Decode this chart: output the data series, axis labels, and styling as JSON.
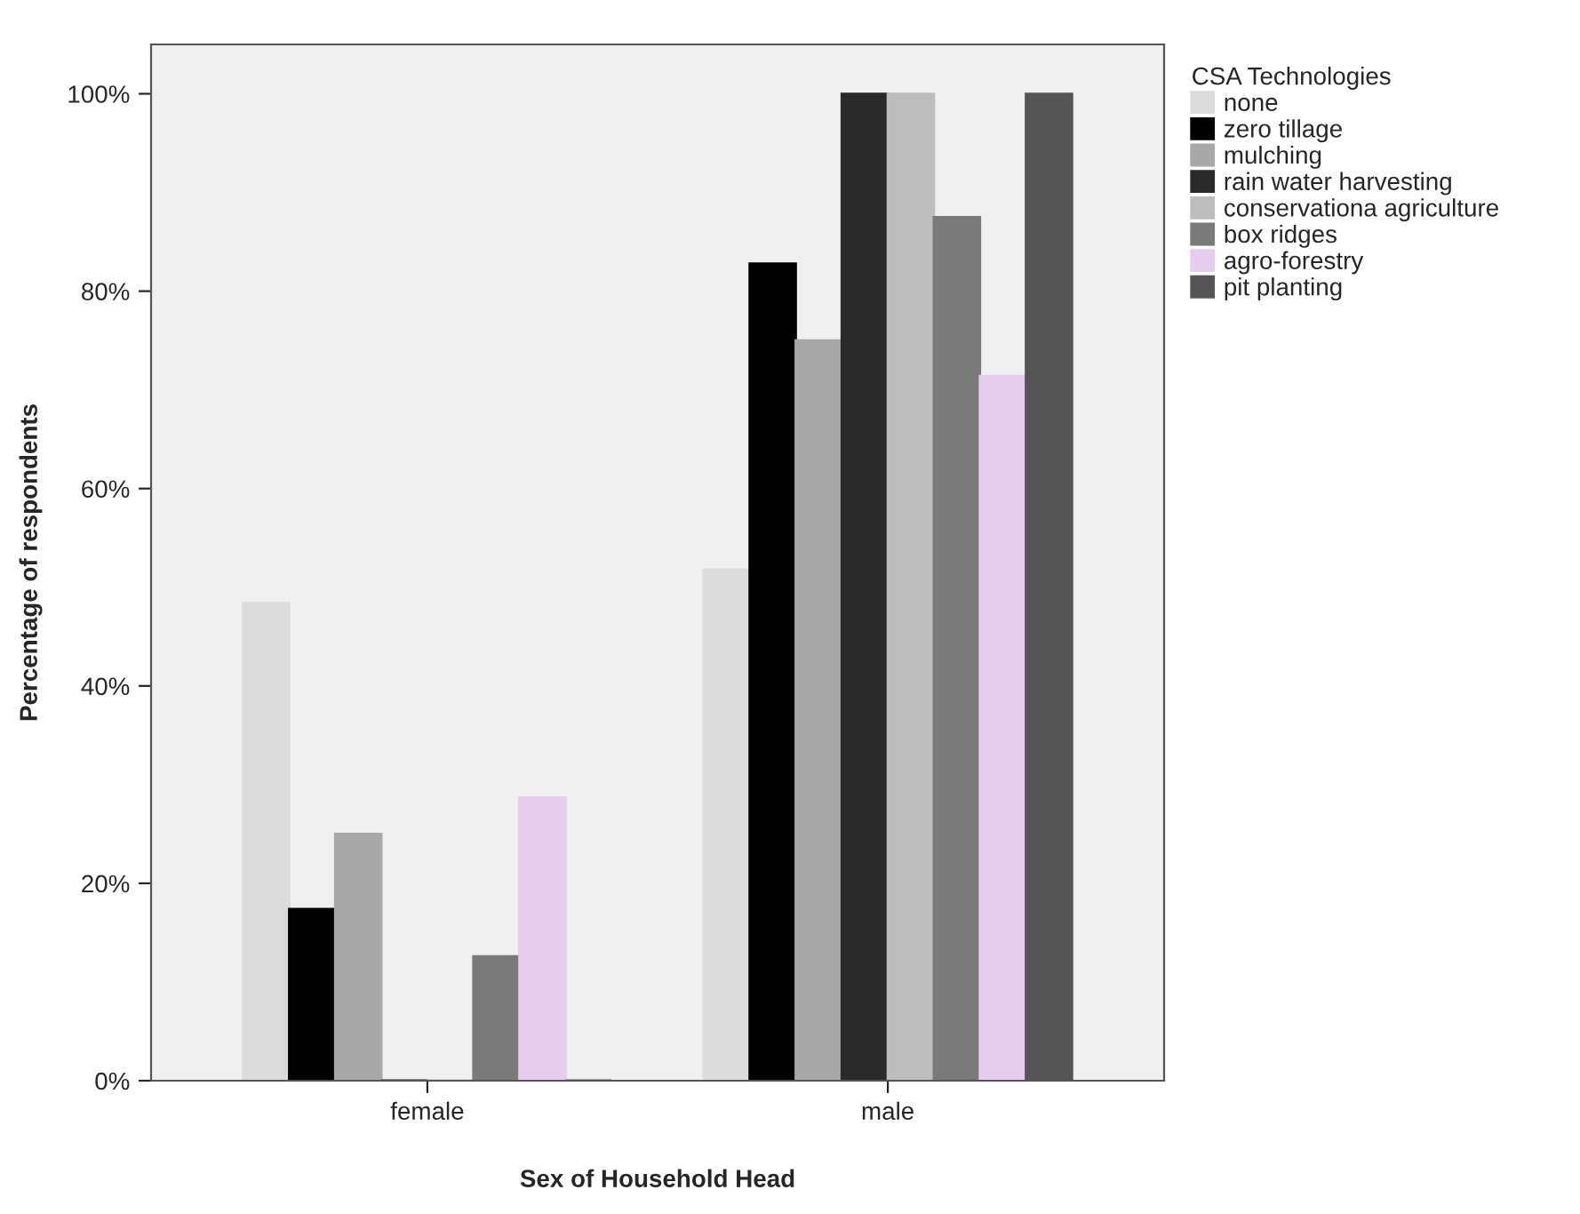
{
  "chart_data": {
    "type": "bar",
    "xlabel": "Sex of Household Head",
    "ylabel": "Percentage of respondents",
    "legend_title": "CSA Technologies",
    "categories": [
      "female",
      "male"
    ],
    "series": [
      {
        "name": "none",
        "color": "#dcdcdc",
        "values": [
          48.4,
          51.8
        ]
      },
      {
        "name": "zero tillage",
        "color": "#000000",
        "values": [
          17.4,
          82.8
        ]
      },
      {
        "name": "mulching",
        "color": "#a8a8a8",
        "values": [
          25.0,
          75.0
        ]
      },
      {
        "name": "rain water harvesting",
        "color": "#2a2a2a",
        "values": [
          0,
          100
        ]
      },
      {
        "name": "conservationa agriculture",
        "color": "#bdbdbd",
        "values": [
          0,
          100
        ]
      },
      {
        "name": "box ridges",
        "color": "#7a7a7a",
        "values": [
          12.6,
          87.5
        ]
      },
      {
        "name": "agro-forestry",
        "color": "#e6cdee",
        "values": [
          28.7,
          71.4
        ]
      },
      {
        "name": "pit planting",
        "color": "#555555",
        "values": [
          0,
          100
        ]
      }
    ],
    "ylim": [
      0,
      105
    ],
    "yticks": [
      {
        "value": 0,
        "label": "0%"
      },
      {
        "value": 20,
        "label": "20%"
      },
      {
        "value": 40,
        "label": "40%"
      },
      {
        "value": 60,
        "label": "60%"
      },
      {
        "value": 80,
        "label": "80%"
      },
      {
        "value": 100,
        "label": "100%"
      }
    ],
    "grid": false,
    "legend": "top right"
  }
}
